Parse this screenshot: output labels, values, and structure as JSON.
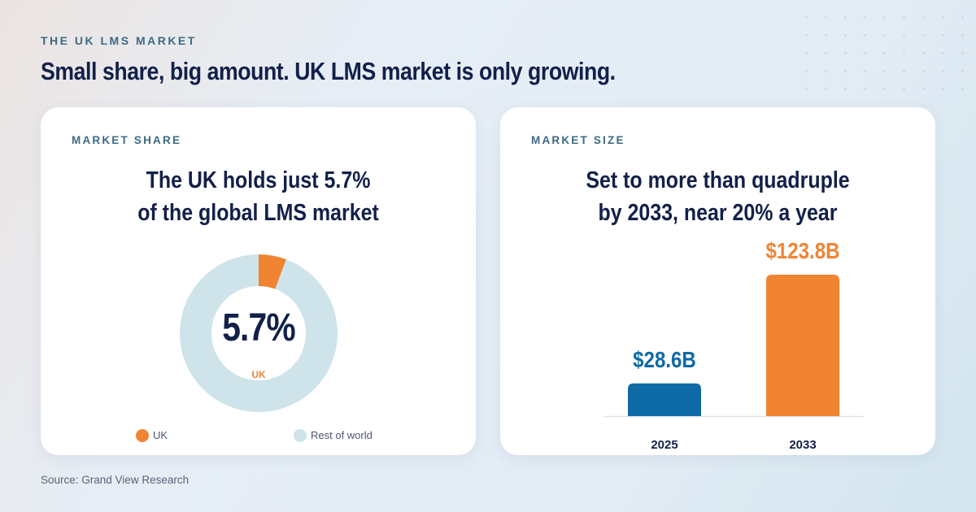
{
  "eyebrow": "THE UK LMS MARKET",
  "headline": "Small share, big amount. UK LMS market is only growing.",
  "source": "Source: Grand View Research",
  "colors": {
    "navy": "#12204a",
    "orange": "#f08433",
    "blue": "#0e6aa5",
    "light": "#cfe3ea",
    "label": "#3c6a86"
  },
  "share_card": {
    "label": "MARKET SHARE",
    "title_line1": "The UK holds just 5.7%",
    "title_line2": "of the global LMS market",
    "center_value": "5.7%",
    "center_label": "UK",
    "legend": [
      {
        "label": "UK",
        "color": "#f08433"
      },
      {
        "label": "Rest of world",
        "color": "#cfe3ea"
      }
    ]
  },
  "size_card": {
    "label": "MARKET SIZE",
    "title_line1": "Set to more than quadruple",
    "title_line2": "by 2033, near 20% a year"
  },
  "chart_data": [
    {
      "type": "pie",
      "labels": [
        "UK",
        "Rest of world"
      ],
      "values": [
        5.7,
        94.3
      ],
      "colors": [
        "#f08433",
        "#cfe3ea"
      ],
      "legend": "bottom"
    },
    {
      "type": "bar",
      "categories": [
        "2025",
        "2033"
      ],
      "values": [
        28.6,
        123.8
      ],
      "value_labels": [
        "$28.6B",
        "$123.8B"
      ],
      "colors": [
        "#0e6aa5",
        "#f08433"
      ],
      "grid": false
    }
  ]
}
